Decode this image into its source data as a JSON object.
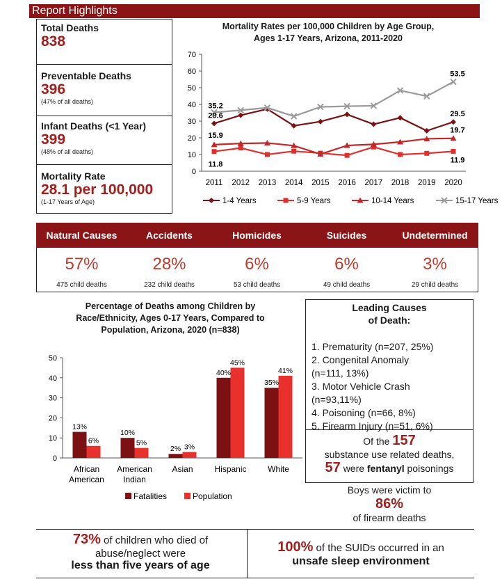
{
  "header": {
    "title": "Report Highlights"
  },
  "stats": {
    "total_deaths": {
      "label": "Total Deaths",
      "value": "838"
    },
    "preventable": {
      "label": "Preventable Deaths",
      "value": "396",
      "note": "(47% of all deaths)"
    },
    "infant": {
      "label": "Infant Deaths (<1 Year)",
      "value": "399",
      "note": "(48% of all deaths)"
    },
    "mortality": {
      "label": "Mortality Rate",
      "value": "28.1 per 100,000",
      "note": "(1-17 Years of Age)"
    }
  },
  "causes": [
    {
      "title": "Natural Causes",
      "pct": "57%",
      "sub": "475 child deaths"
    },
    {
      "title": "Accidents",
      "pct": "28%",
      "sub": "232 child deaths"
    },
    {
      "title": "Homicides",
      "pct": "6%",
      "sub": "53 child deaths"
    },
    {
      "title": "Suicides",
      "pct": "6%",
      "sub": "49 child deaths"
    },
    {
      "title": "Undetermined",
      "pct": "3%",
      "sub": "29 child deaths"
    }
  ],
  "chart_data": [
    {
      "type": "line",
      "title": "Mortality Rates per 100,000 Children by Age Group, Ages 1-17 Years, Arizona, 2011-2020",
      "title_line1": "Mortality Rates per 100,000 Children by Age Group,",
      "title_line2": "Ages 1-17 Years, Arizona, 2011-2020",
      "x": [
        "2011",
        "2012",
        "2013",
        "2014",
        "2015",
        "2016",
        "2017",
        "2018",
        "2019",
        "2020"
      ],
      "ylim": [
        0,
        70
      ],
      "yticks": [
        0,
        10,
        20,
        30,
        40,
        50,
        60,
        70
      ],
      "legend_position": "bottom",
      "series": [
        {
          "name": "1-4 Years",
          "color": "#7b1113",
          "marker": "diamond",
          "values": [
            28.6,
            33.5,
            37.2,
            27.2,
            29.7,
            34.0,
            28.1,
            32.0,
            24.2,
            29.5
          ]
        },
        {
          "name": "5-9 Years",
          "color": "#e0302c",
          "marker": "square",
          "values": [
            11.8,
            13.9,
            10.0,
            12.0,
            10.8,
            9.5,
            14.5,
            10.0,
            10.7,
            11.9
          ]
        },
        {
          "name": "10-14 Years",
          "color": "#c0282a",
          "marker": "triangle",
          "values": [
            15.9,
            16.6,
            16.9,
            15.3,
            10.2,
            15.4,
            16.1,
            17.5,
            19.4,
            19.7
          ]
        },
        {
          "name": "15-17 Years",
          "color": "#9a9a9a",
          "marker": "x",
          "values": [
            35.2,
            36.5,
            38.0,
            32.9,
            38.5,
            38.9,
            39.2,
            48.3,
            44.9,
            53.5
          ]
        }
      ],
      "annotations": [
        {
          "text": "35.2",
          "series": 3,
          "index": 0
        },
        {
          "text": "28.6",
          "series": 0,
          "index": 0
        },
        {
          "text": "15.9",
          "series": 2,
          "index": 0
        },
        {
          "text": "11.8",
          "series": 1,
          "index": 0
        },
        {
          "text": "53.5",
          "series": 3,
          "index": 9
        },
        {
          "text": "29.5",
          "series": 0,
          "index": 9
        },
        {
          "text": "19.7",
          "series": 2,
          "index": 9
        },
        {
          "text": "11.9",
          "series": 1,
          "index": 9
        }
      ]
    },
    {
      "type": "bar",
      "title": "Percentage of Deaths among Children by Race/Ethnicity, Ages 0-17 Years, Compared to Population, Arizona, 2020 (n=838)",
      "title_lines": [
        "Percentage of Deaths among Children by",
        "Race/Ethnicity, Ages 0-17 Years, Compared to",
        "Population, Arizona, 2020 (n=838)"
      ],
      "categories": [
        [
          "African",
          "American"
        ],
        [
          "American",
          "Indian"
        ],
        [
          "Asian"
        ],
        [
          "Hispanic"
        ],
        [
          "White"
        ]
      ],
      "ylim": [
        0,
        50
      ],
      "yticks": [
        0,
        10,
        20,
        30,
        40,
        50
      ],
      "legend_position": "bottom",
      "series": [
        {
          "name": "Fatalities",
          "color": "#7b1113",
          "values": [
            13,
            10,
            2,
            40,
            35
          ],
          "labels": [
            "13%",
            "10%",
            "2%",
            "40%",
            "35%"
          ]
        },
        {
          "name": "Population",
          "color": "#e8302c",
          "values": [
            6,
            5,
            3,
            45,
            41
          ],
          "labels": [
            "6%",
            "5%",
            "3%",
            "45%",
            "41%"
          ]
        }
      ]
    }
  ],
  "leading_causes": {
    "title_line1": "Leading Causes",
    "title_line2": "of Death:",
    "items": [
      "1. Prematurity (n=207, 25%)",
      "2. Congenital Anomaly",
      "(n=111, 13%)",
      "3. Motor Vehicle Crash",
      "(n=93,11%)",
      "4. Poisoning (n=66, 8%)",
      "5. Firearm Injury (n=51, 6%)"
    ]
  },
  "substance": {
    "pre": "Of the",
    "num": "157",
    "line2": "substance use related deaths,",
    "num2": "57",
    "mid": "were",
    "bold": "fentanyl",
    "post": "poisonings"
  },
  "firearm": {
    "line1": "Boys were victim to",
    "pct": "86%",
    "line3": "of firearm deaths"
  },
  "footer_left": {
    "pct": "73%",
    "text1": "of children who died of",
    "text2": "abuse/neglect were",
    "bold": "less than five years of age"
  },
  "footer_right": {
    "pct": "100%",
    "text1": "of the SUIDs occurred in an",
    "bold": "unsafe sleep environment"
  }
}
